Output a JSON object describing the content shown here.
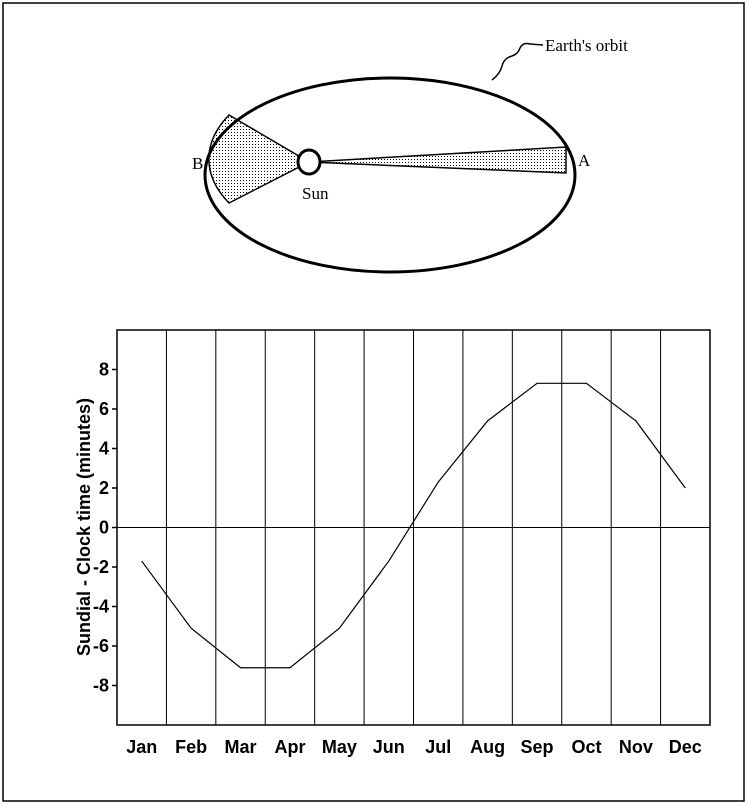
{
  "diagram": {
    "orbit_label": "Earth's orbit",
    "point_a": "A",
    "point_b": "B",
    "sun_label": "Sun"
  },
  "chart_data": {
    "type": "line",
    "y_label": "Sundial - Clock time  (minutes)",
    "categories": [
      "Jan",
      "Feb",
      "Mar",
      "Apr",
      "May",
      "Jun",
      "Jul",
      "Aug",
      "Sep",
      "Oct",
      "Nov",
      "Dec"
    ],
    "series": [
      {
        "color": "#000000",
        "values": [
          -1.7,
          -5.1,
          -7.1,
          -7.1,
          -5.1,
          -1.7,
          2.3,
          5.4,
          7.3,
          7.3,
          5.4,
          2.0
        ]
      }
    ],
    "ylim": [
      -10,
      10
    ],
    "yticks": [
      -8,
      -6,
      -4,
      -2,
      0,
      2,
      4,
      6,
      8
    ],
    "grid": true
  }
}
